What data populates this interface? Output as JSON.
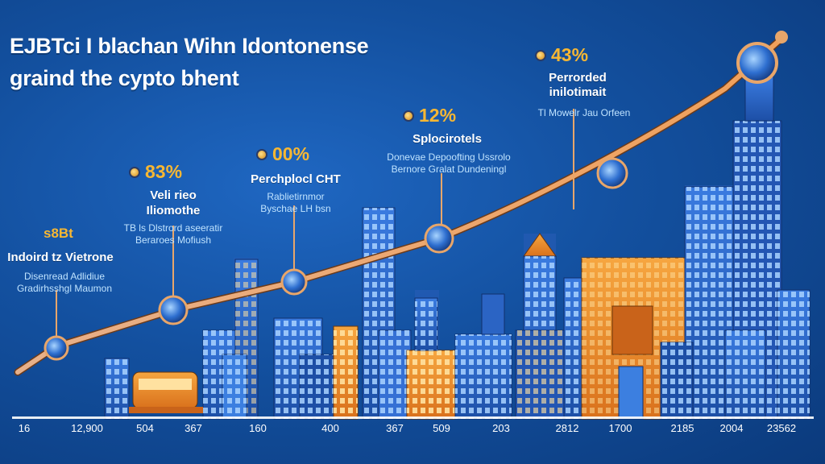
{
  "title": {
    "line1": "EJBTci I blachan Wihn Idontonense",
    "line2": "graind the cypto bhent"
  },
  "milestones": [
    {
      "percent": "",
      "badge": "s8Bt",
      "heading": [
        "Indoird tz Vietrone"
      ],
      "sub": [
        "Disenread Adlidiue",
        "Gradirhsshgl Maumon"
      ]
    },
    {
      "percent": "83%",
      "heading": [
        "Veli rieo",
        "Iliomothe"
      ],
      "sub": [
        "TB ls Dlstrord aseeratir",
        "Beraroes Mofiush"
      ]
    },
    {
      "percent": "00%",
      "heading": [
        "Perchplocl CHT"
      ],
      "sub": [
        "Rablietirnmor",
        "Byschae LH bsn"
      ]
    },
    {
      "percent": "12%",
      "heading": [
        "Splocirotels"
      ],
      "sub": [
        "Donevae Depoofting Ussrolo",
        "Bernore Gralat Dundeningl"
      ]
    },
    {
      "percent": "43%",
      "heading": [
        "Perrorded",
        "inilotimait"
      ],
      "sub": [
        "Tl Mowelr Jau Orfeen"
      ]
    }
  ],
  "x_axis": [
    "16",
    "12,900",
    "504",
    "367",
    "160",
    "400",
    "367",
    "509",
    "203",
    "2812",
    "1700",
    "2185",
    "2004",
    "23562"
  ],
  "colors": {
    "background": "#13509f",
    "accent_orange": "#f7b733",
    "trend_line": "#e6a062",
    "building_blue": "#2b64c4",
    "building_orange": "#f0902c"
  },
  "icons": [
    "coin-icon",
    "globe-node-icon",
    "city-skyline-illustration",
    "trend-arrow-icon"
  ]
}
